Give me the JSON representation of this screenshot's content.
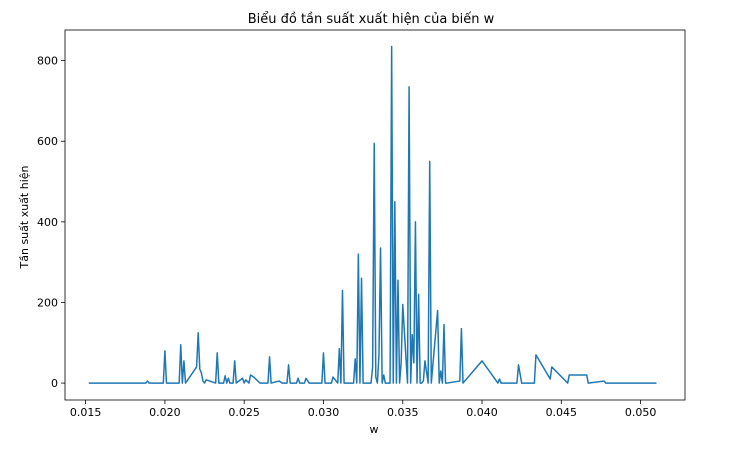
{
  "chart_data": {
    "type": "line",
    "title": "Biểu đồ tần suất xuất hiện của biến w",
    "xlabel": "w",
    "ylabel": "Tần suất xuất hiện",
    "xlim": [
      0.0137,
      0.0528
    ],
    "ylim": [
      -42,
      876
    ],
    "x_ticks": [
      0.015,
      0.02,
      0.025,
      0.03,
      0.035,
      0.04,
      0.045,
      0.05
    ],
    "x_tick_labels": [
      "0.015",
      "0.020",
      "0.025",
      "0.030",
      "0.035",
      "0.040",
      "0.045",
      "0.050"
    ],
    "y_ticks": [
      0,
      200,
      400,
      600,
      800
    ],
    "y_tick_labels": [
      "0",
      "200",
      "400",
      "600",
      "800"
    ],
    "grid": false,
    "legend": false,
    "line_color": "#1f77b4",
    "series": [
      {
        "name": "",
        "x": [
          0.0152,
          0.0188,
          0.0189,
          0.019,
          0.0199,
          0.02,
          0.0201,
          0.0209,
          0.021,
          0.0211,
          0.0212,
          0.0213,
          0.022,
          0.0221,
          0.0222,
          0.0223,
          0.0224,
          0.0225,
          0.0226,
          0.0232,
          0.0233,
          0.0234,
          0.0237,
          0.0238,
          0.0239,
          0.024,
          0.0241,
          0.0243,
          0.0244,
          0.0245,
          0.0249,
          0.025,
          0.0251,
          0.0253,
          0.0254,
          0.0256,
          0.026,
          0.0265,
          0.0266,
          0.0267,
          0.0272,
          0.0274,
          0.0277,
          0.0278,
          0.0279,
          0.0283,
          0.0284,
          0.0285,
          0.0288,
          0.0289,
          0.0291,
          0.0299,
          0.03,
          0.0301,
          0.0305,
          0.0306,
          0.0309,
          0.031,
          0.0311,
          0.0312,
          0.0313,
          0.0319,
          0.032,
          0.0321,
          0.0322,
          0.0323,
          0.0324,
          0.0325,
          0.033,
          0.0331,
          0.0332,
          0.0333,
          0.0334,
          0.0335,
          0.0336,
          0.0337,
          0.0338,
          0.0339,
          0.0342,
          0.0343,
          0.0344,
          0.0345,
          0.0346,
          0.0347,
          0.0348,
          0.0349,
          0.035,
          0.0353,
          0.0354,
          0.0355,
          0.0356,
          0.0357,
          0.0358,
          0.0359,
          0.036,
          0.0361,
          0.0362,
          0.0363,
          0.0364,
          0.0366,
          0.0367,
          0.0368,
          0.0372,
          0.0373,
          0.0374,
          0.0375,
          0.0376,
          0.0377,
          0.0378,
          0.0386,
          0.0387,
          0.0388,
          0.04,
          0.041,
          0.0411,
          0.0412,
          0.0422,
          0.0423,
          0.0425,
          0.0433,
          0.0434,
          0.0443,
          0.0444,
          0.0454,
          0.0455,
          0.0466,
          0.0467,
          0.0477,
          0.0478,
          0.0488,
          0.0489,
          0.051
        ],
        "y": [
          0,
          0,
          5,
          0,
          0,
          80,
          0,
          0,
          95,
          0,
          55,
          0,
          40,
          125,
          35,
          25,
          5,
          0,
          8,
          0,
          75,
          0,
          0,
          18,
          0,
          12,
          0,
          0,
          55,
          0,
          12,
          0,
          8,
          0,
          20,
          15,
          0,
          0,
          65,
          0,
          5,
          0,
          0,
          45,
          0,
          0,
          12,
          0,
          0,
          12,
          0,
          0,
          75,
          0,
          0,
          15,
          0,
          85,
          0,
          230,
          0,
          0,
          60,
          0,
          320,
          0,
          260,
          0,
          0,
          40,
          595,
          15,
          0,
          70,
          335,
          0,
          20,
          0,
          0,
          835,
          0,
          450,
          0,
          255,
          0,
          50,
          195,
          0,
          735,
          0,
          120,
          50,
          400,
          0,
          220,
          0,
          0,
          5,
          55,
          0,
          550,
          0,
          180,
          0,
          30,
          0,
          145,
          0,
          0,
          5,
          135,
          0,
          55,
          0,
          10,
          0,
          0,
          45,
          0,
          0,
          70,
          10,
          40,
          0,
          20,
          20,
          0,
          5,
          0,
          0,
          0,
          0
        ]
      }
    ]
  }
}
